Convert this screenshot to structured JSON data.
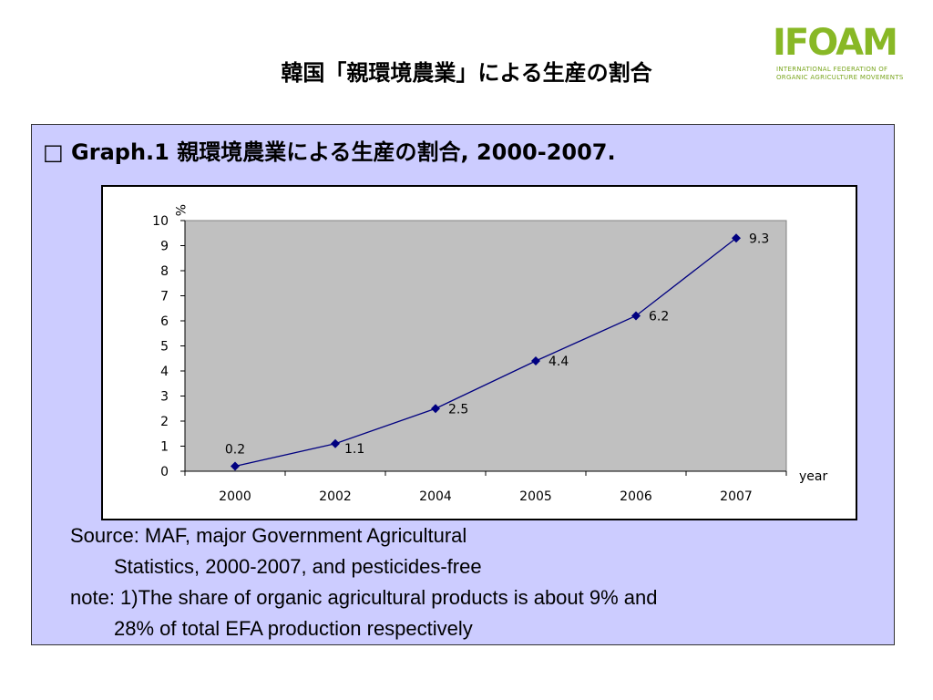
{
  "slide": {
    "title": "韓国「親環境農業」による生産の割合"
  },
  "logo": {
    "word": "IFOAM",
    "subtitle_line1": "INTERNATIONAL FEDERATION OF",
    "subtitle_line2": "ORGANIC AGRICULTURE MOVEMENTS",
    "color": "#88b826"
  },
  "panel": {
    "heading": "□ Graph.1 親環境農業による生産の割合, 2000-2007.",
    "background": "#ccccff"
  },
  "chart_data": {
    "type": "line",
    "title": "",
    "ylabel": "%",
    "xlabel": "year",
    "categories": [
      "2000",
      "2002",
      "2004",
      "2005",
      "2006",
      "2007"
    ],
    "series": [
      {
        "values": [
          0.2,
          1.1,
          2.5,
          4.4,
          6.2,
          9.3
        ],
        "labels": [
          "0.2",
          "1.1",
          "2.5",
          "4.4",
          "6.2",
          "9.3"
        ]
      }
    ],
    "ylim": [
      0,
      10
    ],
    "yticks": [
      "0",
      "1",
      "2",
      "3",
      "4",
      "5",
      "6",
      "7",
      "8",
      "9",
      "10"
    ],
    "grid": false,
    "legend": "none",
    "plot_background": "#c0c0c0",
    "line_color": "#000080"
  },
  "notes": {
    "line1": "Source: MAF, major Government Agricultural",
    "line2": "Statistics, 2000-2007, and pesticides-free",
    "line3": "note: 1)The share of organic agricultural products is about 9% and",
    "line4": "28% of total EFA production respectively"
  }
}
